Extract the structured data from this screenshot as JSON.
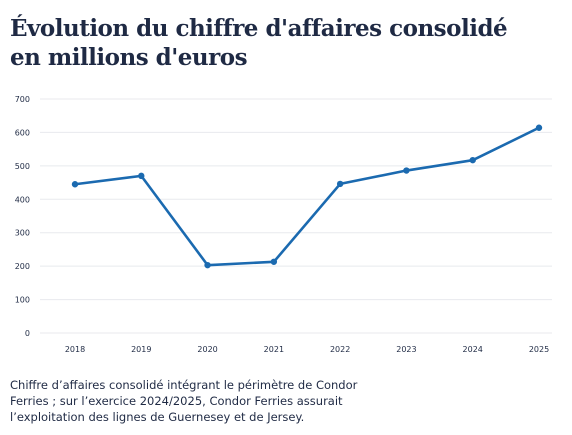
{
  "header": {
    "title_line1": "Évolution du chiffre d'affaires consolidé",
    "title_line2": "en millions d'euros"
  },
  "footer": {
    "caption": "Chiffre d’affaires consolidé intégrant le périmètre de Condor Ferries ; sur l’exercice 2024/2025, Condor Ferries assurait l’exploitation des lignes de Guernesey et de Jersey."
  },
  "colors": {
    "line": "#1b6ab0",
    "grid": "#e8eaee",
    "tick": "#1f2a44",
    "title": "#1f2a44"
  },
  "chart_data": {
    "type": "line",
    "title": "Évolution du chiffre d'affaires consolidé en millions d'euros",
    "xlabel": "",
    "ylabel": "",
    "categories": [
      "2018",
      "2019",
      "2020",
      "2021",
      "2022",
      "2023",
      "2024",
      "2025"
    ],
    "series": [
      {
        "values": [
          445,
          470,
          203,
          213,
          446,
          486,
          517,
          614
        ]
      }
    ],
    "ylim": [
      0,
      700
    ],
    "yticks": [
      0,
      100,
      200,
      300,
      400,
      500,
      600,
      700
    ],
    "grid": true,
    "legend": "none"
  }
}
